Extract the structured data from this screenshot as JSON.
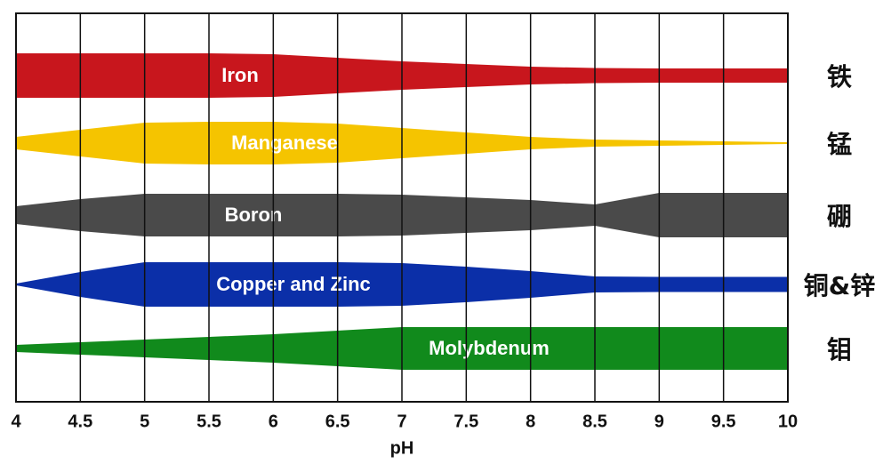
{
  "chart_data": {
    "type": "band",
    "x_label": "pH",
    "x": [
      4,
      4.5,
      5,
      5.5,
      6,
      6.5,
      7,
      7.5,
      8,
      8.5,
      9,
      9.5,
      10
    ],
    "xlim": [
      4,
      10
    ],
    "xticks": [
      4,
      4.5,
      5,
      5.5,
      6,
      6.5,
      7,
      7.5,
      8,
      8.5,
      9,
      9.5,
      10
    ],
    "grid": true,
    "series": [
      {
        "name": "Iron",
        "side_label": "铁",
        "color": "#c8161d",
        "values": [
          50,
          50,
          50,
          50,
          48,
          40,
          32,
          26,
          20,
          17,
          16,
          16,
          16
        ]
      },
      {
        "name": "Manganese",
        "side_label": "锰",
        "color": "#f5c400",
        "values": [
          14,
          30,
          46,
          48,
          48,
          44,
          34,
          24,
          14,
          8,
          6,
          4,
          2
        ]
      },
      {
        "name": "Boron",
        "side_label": "硼",
        "color": "#4a4a4a",
        "values": [
          20,
          36,
          48,
          48,
          48,
          48,
          46,
          40,
          34,
          24,
          50,
          50,
          50
        ]
      },
      {
        "name": "Copper and Zinc",
        "side_label": "铜&锌",
        "color": "#0b2fa8",
        "values": [
          2,
          28,
          50,
          50,
          50,
          50,
          48,
          40,
          30,
          18,
          17,
          17,
          17
        ]
      },
      {
        "name": "Molybdenum",
        "side_label": "钼",
        "color": "#118a1c",
        "values": [
          8,
          14,
          20,
          26,
          32,
          40,
          48,
          48,
          48,
          48,
          48,
          48,
          48
        ]
      }
    ]
  }
}
